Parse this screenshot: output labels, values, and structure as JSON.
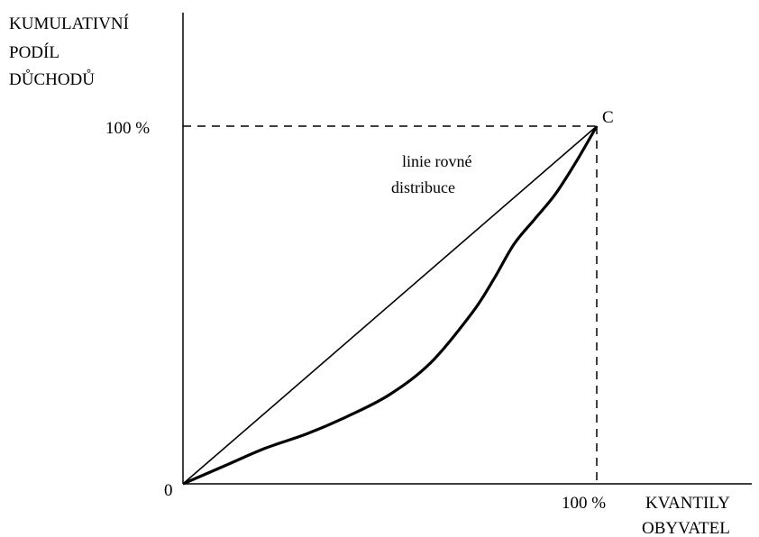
{
  "chart_data": {
    "type": "line",
    "ylabel_lines": [
      "KUMULATIVNÍ",
      "PODÍL",
      "DŮCHODŮ"
    ],
    "xlabel_lines": [
      "KVANTILY",
      "OBYVATEL"
    ],
    "origin_label": "0",
    "x_tick_label": "100 %",
    "y_tick_label": "100 %",
    "point_label": "C",
    "equality_line_label": [
      "linie rovné",
      "distribuce"
    ],
    "xlim": [
      0,
      100
    ],
    "ylim": [
      0,
      100
    ],
    "grid": false,
    "series": [
      {
        "x": [
          0,
          100
        ],
        "y": [
          0,
          100
        ]
      },
      {
        "x": [
          0,
          10,
          20,
          30,
          40,
          50,
          60,
          70,
          75,
          80,
          85,
          90,
          95,
          100
        ],
        "y": [
          0,
          5,
          10,
          14,
          19,
          25,
          34,
          48,
          57,
          67,
          74,
          81,
          90,
          100
        ]
      }
    ]
  }
}
